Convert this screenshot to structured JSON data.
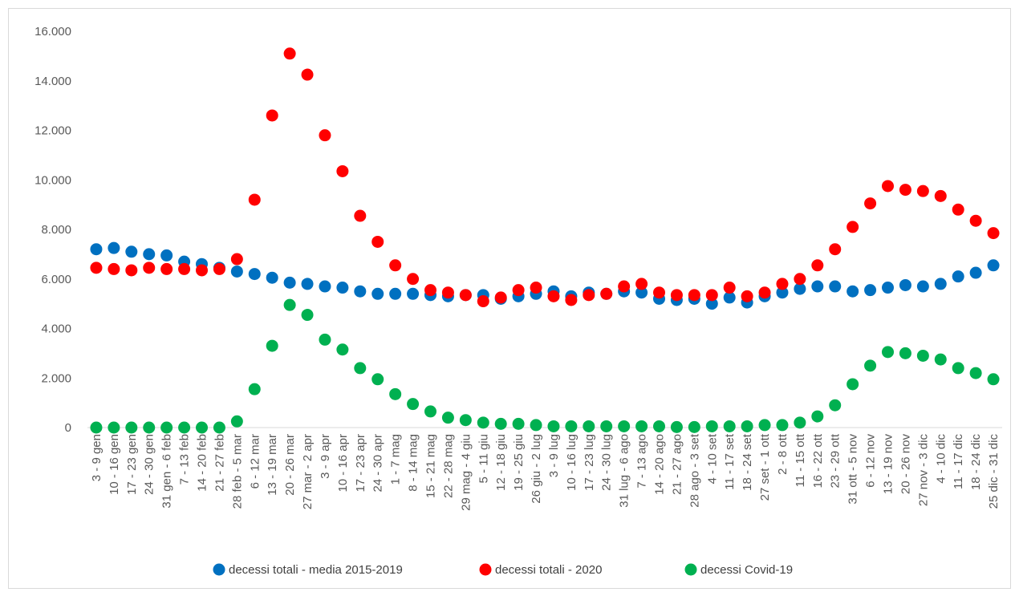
{
  "chart_data": {
    "type": "scatter",
    "categories": [
      "3 - 9 gen",
      "10 - 16 gen",
      "17 - 23 gen",
      "24 - 30 gen",
      "31 gen - 6 feb",
      "7 - 13 feb",
      "14 - 20 feb",
      "21 - 27 feb",
      "28 feb - 5 mar",
      "6 - 12 mar",
      "13 - 19 mar",
      "20 - 26 mar",
      "27 mar - 2 apr",
      "3 - 9 apr",
      "10 - 16 apr",
      "17 - 23 apr",
      "24 - 30 apr",
      "1 - 7 mag",
      "8 - 14 mag",
      "15 - 21 mag",
      "22 - 28 mag",
      "29 mag - 4 giu",
      "5 - 11 giu",
      "12 - 18 giu",
      "19 - 25 giu",
      "26 giu - 2 lug",
      "3 - 9 lug",
      "10 - 16 lug",
      "17 - 23 lug",
      "24 - 30 lug",
      "31 lug - 6 ago",
      "7 - 13 ago",
      "14 - 20 ago",
      "21 - 27 ago",
      "28 ago - 3 set",
      "4 - 10 set",
      "11 - 17 set",
      "18 - 24 set",
      "27 set - 1 ott",
      "2 - 8 ott",
      "11 - 15 ott",
      "16 - 22 ott",
      "23 - 29 ott",
      "31 ott - 5 nov",
      "6 - 12 nov",
      "13 - 19 nov",
      "20 - 26 nov",
      "27 nov - 3 dic",
      "4 - 10 dic",
      "11 - 17 dic",
      "18 - 24 dic",
      "25 dic - 31 dic"
    ],
    "series": [
      {
        "name": "decessi totali - media 2015-2019",
        "color": "#0070c0",
        "values": [
          7200,
          7250,
          7100,
          7000,
          6950,
          6700,
          6600,
          6450,
          6300,
          6200,
          6050,
          5850,
          5800,
          5700,
          5650,
          5500,
          5400,
          5400,
          5400,
          5350,
          5300,
          5350,
          5350,
          5200,
          5300,
          5400,
          5500,
          5300,
          5450,
          5400,
          5500,
          5450,
          5200,
          5150,
          5200,
          5000,
          5250,
          5050,
          5300,
          5450,
          5600,
          5700,
          5700,
          5500,
          5550,
          5650,
          5750,
          5700,
          5800,
          6100,
          6250,
          6550
        ]
      },
      {
        "name": "decessi totali - 2020",
        "color": "#ff0000",
        "values": [
          6450,
          6400,
          6350,
          6450,
          6400,
          6400,
          6350,
          6400,
          6800,
          9200,
          12600,
          15100,
          14250,
          11800,
          10350,
          8550,
          7500,
          6550,
          6000,
          5550,
          5450,
          5350,
          5100,
          5250,
          5550,
          5650,
          5300,
          5150,
          5350,
          5400,
          5700,
          5800,
          5450,
          5350,
          5350,
          5350,
          5650,
          5300,
          5450,
          5800,
          6000,
          6550,
          7200,
          8100,
          9050,
          9750,
          9600,
          9550,
          9350,
          8800,
          8350,
          7850
        ]
      },
      {
        "name": "decessi Covid-19",
        "color": "#00b050",
        "values": [
          0,
          0,
          0,
          0,
          0,
          0,
          0,
          0,
          250,
          1550,
          3300,
          4950,
          4550,
          3550,
          3150,
          2400,
          1950,
          1350,
          950,
          650,
          400,
          300,
          200,
          150,
          150,
          100,
          50,
          50,
          50,
          50,
          50,
          50,
          50,
          20,
          20,
          50,
          50,
          50,
          100,
          100,
          200,
          450,
          900,
          1750,
          2500,
          3050,
          3000,
          2900,
          2750,
          2400,
          2200,
          1950
        ]
      }
    ],
    "yticks": [
      "0",
      "2.000",
      "4.000",
      "6.000",
      "8.000",
      "10.000",
      "12.000",
      "14.000",
      "16.000"
    ],
    "ylim": [
      0,
      16000
    ],
    "legend_position": "bottom",
    "grid": false
  }
}
